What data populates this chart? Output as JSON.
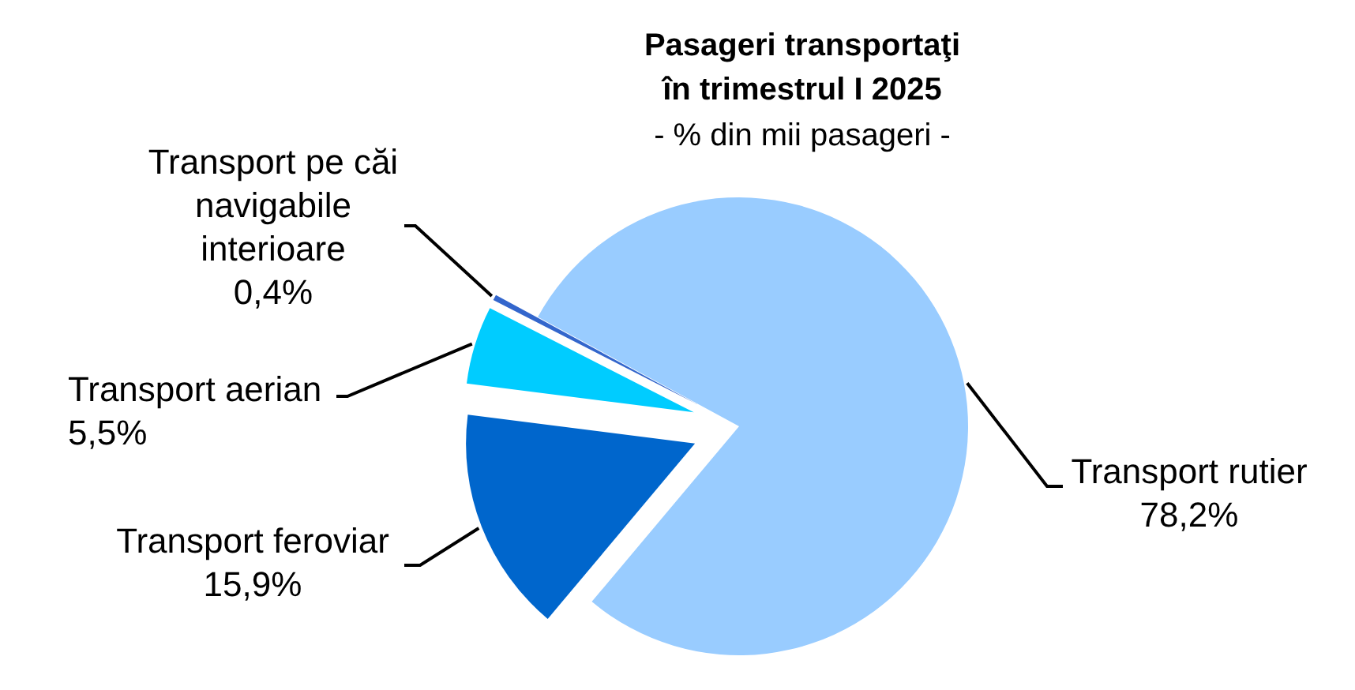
{
  "chart_data": {
    "type": "pie",
    "title": "Pasageri transportaţi\nîn trimestrul I 2025",
    "subtitle": "- % din mii pasageri -",
    "categories": [
      "Transport rutier",
      "Transport feroviar",
      "Transport aerian",
      "Transport pe căi navigabile interioare"
    ],
    "values": [
      78.2,
      15.9,
      5.5,
      0.4
    ],
    "colors": [
      "#99ccff",
      "#0066cc",
      "#00ccff",
      "#3366cc"
    ],
    "value_labels": [
      "78,2%",
      "15,9%",
      "5,5%",
      "0,4%"
    ]
  }
}
